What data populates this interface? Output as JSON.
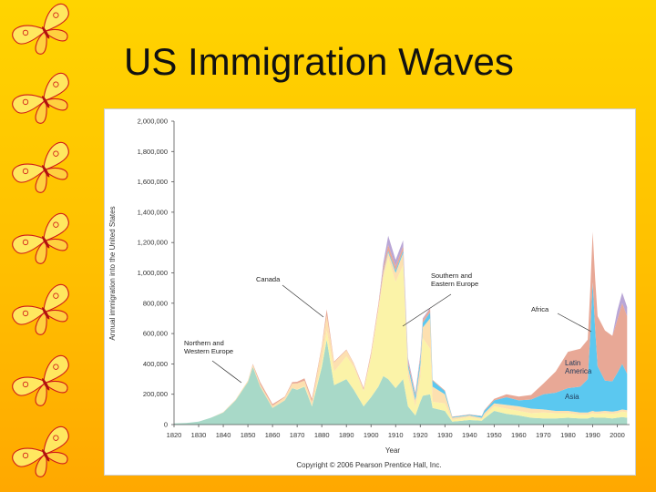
{
  "slide": {
    "title": "US Immigration Waves",
    "decoration_icon": "butterfly-icon"
  },
  "chart_data": {
    "type": "area",
    "stacked": true,
    "xlabel": "Year",
    "ylabel": "Annual immigration into the United States",
    "ylim": [
      0,
      2000000
    ],
    "xlim": [
      1820,
      2005
    ],
    "y_ticks": [
      "2,000,000",
      "1,800,000",
      "1,600,000",
      "1,400,000",
      "1,200,000",
      "1,000,000",
      "800,000",
      "600,000",
      "400,000",
      "200,000",
      "0"
    ],
    "x_ticks": [
      "1820",
      "1830",
      "1840",
      "1850",
      "1860",
      "1870",
      "1880",
      "1890",
      "1900",
      "1910",
      "1920",
      "1930",
      "1940",
      "1950",
      "1960",
      "1970",
      "1980",
      "1990",
      "2000"
    ],
    "x": [
      1820,
      1825,
      1830,
      1835,
      1840,
      1845,
      1850,
      1852,
      1855,
      1860,
      1865,
      1868,
      1870,
      1873,
      1876,
      1880,
      1882,
      1885,
      1890,
      1893,
      1897,
      1900,
      1903,
      1905,
      1907,
      1910,
      1913,
      1915,
      1918,
      1920,
      1921,
      1924,
      1925,
      1930,
      1933,
      1940,
      1945,
      1946,
      1950,
      1955,
      1960,
      1965,
      1970,
      1975,
      1980,
      1985,
      1988,
      1989,
      1990,
      1991,
      1992,
      1995,
      1998,
      2000,
      2002,
      2004
    ],
    "series": [
      {
        "name": "Northern and Western Europe",
        "color": "#a8d9c8",
        "values": [
          8000,
          10000,
          20000,
          45000,
          80000,
          160000,
          280000,
          380000,
          250000,
          110000,
          160000,
          240000,
          230000,
          250000,
          120000,
          380000,
          560000,
          260000,
          300000,
          230000,
          120000,
          180000,
          250000,
          320000,
          300000,
          240000,
          300000,
          120000,
          60000,
          150000,
          190000,
          200000,
          110000,
          90000,
          20000,
          30000,
          25000,
          40000,
          90000,
          70000,
          60000,
          45000,
          40000,
          40000,
          45000,
          40000,
          40000,
          45000,
          50000,
          45000,
          45000,
          45000,
          40000,
          45000,
          50000,
          45000
        ]
      },
      {
        "name": "Southern and Eastern Europe",
        "color": "#fbf3a8",
        "values": [
          0,
          0,
          0,
          0,
          0,
          0,
          0,
          0,
          0,
          0,
          0,
          0,
          2000,
          5000,
          5000,
          30000,
          60000,
          90000,
          150000,
          150000,
          100000,
          260000,
          500000,
          650000,
          800000,
          700000,
          750000,
          200000,
          60000,
          150000,
          380000,
          300000,
          40000,
          50000,
          10000,
          20000,
          10000,
          15000,
          30000,
          35000,
          30000,
          30000,
          40000,
          35000,
          30000,
          25000,
          25000,
          25000,
          25000,
          25000,
          25000,
          30000,
          30000,
          30000,
          35000,
          35000
        ]
      },
      {
        "name": "Canada",
        "color": "#fde0b0",
        "values": [
          0,
          0,
          0,
          0,
          2000,
          5000,
          10000,
          15000,
          15000,
          15000,
          20000,
          30000,
          40000,
          35000,
          25000,
          100000,
          100000,
          60000,
          40000,
          20000,
          10000,
          20000,
          25000,
          30000,
          35000,
          60000,
          80000,
          60000,
          40000,
          90000,
          70000,
          200000,
          100000,
          60000,
          15000,
          10000,
          10000,
          20000,
          20000,
          25000,
          30000,
          30000,
          20000,
          15000,
          15000,
          15000,
          15000,
          15000,
          15000,
          15000,
          15000,
          15000,
          15000,
          15000,
          15000,
          15000
        ]
      },
      {
        "name": "Latin America",
        "color": "#5bc8f0",
        "values": [
          0,
          0,
          0,
          0,
          0,
          0,
          0,
          0,
          0,
          0,
          0,
          0,
          0,
          0,
          0,
          0,
          0,
          0,
          0,
          0,
          0,
          0,
          0,
          5000,
          10000,
          15000,
          15000,
          20000,
          30000,
          40000,
          30000,
          40000,
          40000,
          20000,
          5000,
          5000,
          10000,
          15000,
          20000,
          50000,
          40000,
          60000,
          100000,
          120000,
          150000,
          170000,
          220000,
          500000,
          850000,
          550000,
          300000,
          200000,
          200000,
          250000,
          300000,
          240000
        ]
      },
      {
        "name": "Asia",
        "color": "#e8a896",
        "values": [
          0,
          0,
          0,
          0,
          0,
          0,
          0,
          5000,
          15000,
          10000,
          5000,
          10000,
          10000,
          15000,
          20000,
          10000,
          40000,
          5000,
          5000,
          5000,
          10000,
          15000,
          20000,
          30000,
          40000,
          30000,
          30000,
          20000,
          15000,
          20000,
          20000,
          25000,
          5000,
          5000,
          2000,
          2000,
          2000,
          5000,
          10000,
          20000,
          25000,
          30000,
          70000,
          140000,
          240000,
          250000,
          260000,
          300000,
          330000,
          330000,
          330000,
          330000,
          300000,
          350000,
          400000,
          380000
        ]
      },
      {
        "name": "Africa",
        "color": "#b9a6d6",
        "values": [
          0,
          0,
          0,
          0,
          0,
          0,
          0,
          0,
          0,
          0,
          0,
          0,
          0,
          0,
          0,
          0,
          0,
          0,
          0,
          0,
          0,
          0,
          0,
          30000,
          60000,
          40000,
          40000,
          20000,
          5000,
          10000,
          10000,
          5000,
          0,
          0,
          0,
          0,
          0,
          0,
          0,
          0,
          0,
          0,
          0,
          0,
          0,
          0,
          0,
          0,
          0,
          0,
          0,
          0,
          0,
          60000,
          70000,
          60000
        ]
      }
    ],
    "annotations": [
      {
        "lines": [
          "Canada"
        ]
      },
      {
        "lines": [
          "Southern and",
          "Eastern Europe"
        ]
      },
      {
        "lines": [
          "Africa"
        ]
      },
      {
        "lines": [
          "Northern and",
          "Western Europe"
        ]
      },
      {
        "lines": [
          "Latin",
          "America"
        ]
      },
      {
        "lines": [
          "Asia"
        ]
      }
    ],
    "copyright": "Copyright © 2006 Pearson Prentice Hall, Inc."
  }
}
